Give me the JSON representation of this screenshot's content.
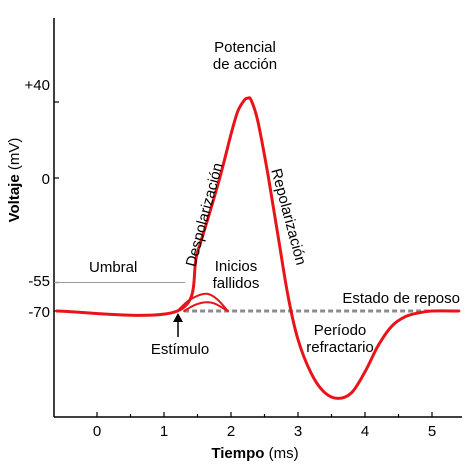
{
  "colors": {
    "curve": "#e8141a",
    "axis": "#000000",
    "threshold_line": "#9a9a9a",
    "resting_dash": "#8c8c8c",
    "background": "#ffffff"
  },
  "chart_data": {
    "type": "line",
    "xlabel_bold": "Tiempo",
    "xlabel_unit": "(ms)",
    "ylabel_bold": "Voltaje",
    "ylabel_unit": "(mV)",
    "xlim": [
      -0.6,
      5.4
    ],
    "ylim": [
      -125,
      70
    ],
    "x_ticks": [
      {
        "value": 0,
        "label": "0"
      },
      {
        "value": 1,
        "label": "1"
      },
      {
        "value": 2,
        "label": "2"
      },
      {
        "value": 3,
        "label": "3"
      },
      {
        "value": 4,
        "label": "4"
      },
      {
        "value": 5,
        "label": "5"
      }
    ],
    "y_ticks": [
      {
        "value": 40,
        "label": "+40"
      },
      {
        "value": 0,
        "label": "0"
      },
      {
        "value": -55,
        "label": "-55"
      },
      {
        "value": -70,
        "label": "-70"
      }
    ],
    "threshold": {
      "value": -55,
      "label": "Umbral"
    },
    "resting": {
      "value": -70,
      "label": "Estado de reposo"
    },
    "series": [
      {
        "role": "action-potential",
        "x": [
          -0.6,
          1.2,
          1.5,
          1.8,
          2.0,
          2.1,
          2.2,
          2.25,
          2.3,
          2.4,
          2.55,
          2.7,
          2.85,
          3.0,
          3.2,
          3.4,
          3.6,
          3.8,
          4.0,
          4.2,
          4.4,
          4.6,
          4.8,
          5.0,
          5.4
        ],
        "y": [
          -70,
          -70,
          -39,
          -4,
          23,
          35,
          41,
          42,
          41,
          30,
          2,
          -30,
          -62,
          -85,
          -103,
          -113,
          -116,
          -113,
          -102,
          -88,
          -78,
          -73,
          -71,
          -70,
          -70
        ]
      },
      {
        "role": "failed-initiation-1",
        "x": [
          1.2,
          1.35,
          1.5,
          1.65,
          1.8,
          1.95
        ],
        "y": [
          -70,
          -65,
          -62,
          -61,
          -64,
          -70
        ]
      },
      {
        "role": "failed-initiation-2",
        "x": [
          1.3,
          1.45,
          1.6,
          1.75,
          1.95
        ],
        "y": [
          -70,
          -67,
          -65.5,
          -66,
          -70
        ]
      }
    ],
    "annotations": {
      "peak_line1": "Potencial",
      "peak_line2": "de acción",
      "depolarization": "Despolarización",
      "repolarization": "Repolarización",
      "failed_line1": "Inicios",
      "failed_line2": "fallidos",
      "refractory_line1": "Período",
      "refractory_line2": "refractario",
      "stimulus": "Estímulo"
    }
  }
}
